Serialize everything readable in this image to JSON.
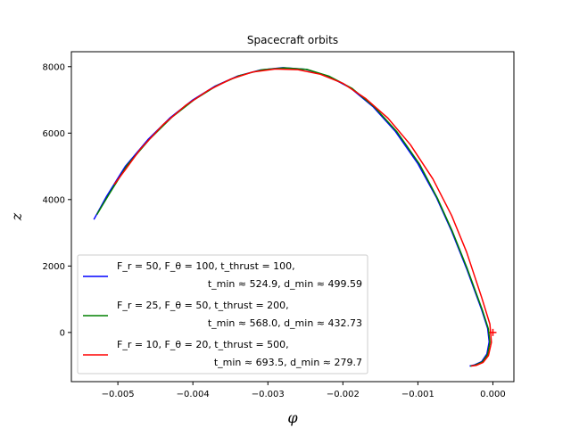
{
  "chart_data": {
    "type": "line",
    "title": "Spacecraft orbits",
    "xlabel": "φ",
    "ylabel": "z",
    "xlim": [
      -0.00562,
      0.00028
    ],
    "ylim": [
      -1480,
      8450
    ],
    "xticks": [
      -0.005,
      -0.004,
      -0.003,
      -0.002,
      -0.001,
      0.0
    ],
    "xtick_labels": [
      "−0.005",
      "−0.004",
      "−0.003",
      "−0.002",
      "−0.001",
      "0.000"
    ],
    "yticks": [
      0,
      2000,
      4000,
      6000,
      8000
    ],
    "ytick_labels": [
      "0",
      "2000",
      "4000",
      "6000",
      "8000"
    ],
    "grid": false,
    "legend_position": "lower-left",
    "marker": {
      "x": 0.0,
      "y": 0,
      "symbol": "+",
      "color": "#ff0000"
    },
    "series": [
      {
        "color": "#0000ff",
        "legend_line1": "F_r = 50, F_θ = 100, t_thrust = 100,",
        "legend_line2": "t_min ≈ 524.9, d_min ≈ 499.59",
        "x": [
          -0.00532,
          -0.00515,
          -0.0049,
          -0.0046,
          -0.0043,
          -0.004,
          -0.0037,
          -0.0034,
          -0.0031,
          -0.0028,
          -0.0025,
          -0.0022,
          -0.0019,
          -0.0016,
          -0.0013,
          -0.001,
          -0.00075,
          -0.00055,
          -0.00035,
          -0.00015,
          -7e-05,
          -5e-05,
          -8e-05,
          -0.00015,
          -0.00025,
          -0.00031
        ],
        "y": [
          3400,
          4100,
          5000,
          5800,
          6470,
          7000,
          7420,
          7720,
          7900,
          7970,
          7920,
          7720,
          7360,
          6800,
          6050,
          5080,
          4050,
          3050,
          1920,
          680,
          120,
          -280,
          -650,
          -880,
          -980,
          -1010
        ]
      },
      {
        "color": "#008000",
        "legend_line1": "F_r = 25, F_θ = 50, t_thrust = 200,",
        "legend_line2": "t_min ≈ 568.0, d_min ≈ 432.73",
        "x": [
          -0.00528,
          -0.00512,
          -0.00488,
          -0.00458,
          -0.00428,
          -0.00398,
          -0.00368,
          -0.00338,
          -0.00308,
          -0.00278,
          -0.00248,
          -0.00218,
          -0.00188,
          -0.00158,
          -0.00128,
          -0.00098,
          -0.00074,
          -0.00054,
          -0.00034,
          -0.00014,
          -6e-05,
          -4e-05,
          -7e-05,
          -0.00014,
          -0.00024,
          -0.0003
        ],
        "y": [
          3550,
          4150,
          5020,
          5810,
          6480,
          7010,
          7430,
          7730,
          7905,
          7965,
          7915,
          7710,
          7350,
          6790,
          6040,
          5070,
          4040,
          3040,
          1910,
          670,
          110,
          -290,
          -660,
          -885,
          -985,
          -1012
        ]
      },
      {
        "color": "#ff0000",
        "legend_line1": "F_r = 10, F_θ = 20, t_thrust = 500,",
        "legend_line2": "t_min ≈ 693.5, d_min ≈ 279.7",
        "x": [
          -0.00505,
          -0.0049,
          -0.0047,
          -0.0044,
          -0.0041,
          -0.0038,
          -0.0035,
          -0.0032,
          -0.0029,
          -0.0026,
          -0.0023,
          -0.002,
          -0.0017,
          -0.0014,
          -0.0011,
          -0.0008,
          -0.00055,
          -0.00035,
          -0.00015,
          -4e-05,
          -2e-05,
          -6e-05,
          -0.00013,
          -0.00022,
          -0.00029
        ],
        "y": [
          4450,
          4900,
          5520,
          6250,
          6830,
          7280,
          7620,
          7840,
          7930,
          7910,
          7770,
          7500,
          7050,
          6450,
          5650,
          4620,
          3520,
          2420,
          1050,
          250,
          -300,
          -700,
          -900,
          -990,
          -1010
        ]
      }
    ]
  }
}
